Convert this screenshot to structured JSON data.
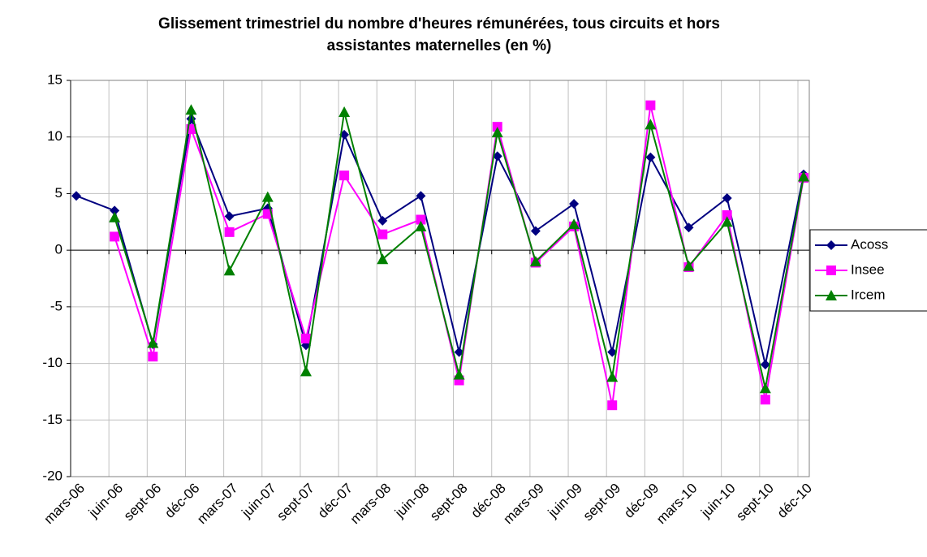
{
  "chart_data": {
    "type": "line",
    "title": "Glissement trimestriel du nombre d'heures rémunérées, tous circuits et hors assistantes maternelles (en %)",
    "categories": [
      "mars-06",
      "juin-06",
      "sept-06",
      "déc-06",
      "mars-07",
      "juin-07",
      "sept-07",
      "déc-07",
      "mars-08",
      "juin-08",
      "sept-08",
      "déc-08",
      "mars-09",
      "juin-09",
      "sept-09",
      "déc-09",
      "mars-10",
      "juin-10",
      "sept-10",
      "déc-10"
    ],
    "series": [
      {
        "name": "Acoss",
        "color": "#000080",
        "marker": "diamond",
        "values": [
          4.8,
          3.5,
          -8.3,
          11.6,
          3.0,
          3.7,
          -8.4,
          10.2,
          2.6,
          4.8,
          -9.0,
          8.3,
          1.7,
          4.1,
          -9.0,
          8.2,
          2.0,
          4.6,
          -10.1,
          6.7
        ]
      },
      {
        "name": "Insee",
        "color": "#ff00ff",
        "marker": "square",
        "values": [
          null,
          1.2,
          -9.4,
          10.7,
          1.6,
          3.2,
          -7.8,
          6.6,
          1.4,
          2.7,
          -11.5,
          10.9,
          -1.1,
          2.1,
          -13.7,
          12.8,
          -1.5,
          3.1,
          -13.2,
          6.4
        ]
      },
      {
        "name": "Ircem",
        "color": "#008000",
        "marker": "triangle",
        "values": [
          null,
          2.9,
          -8.2,
          12.4,
          -1.8,
          4.7,
          -10.7,
          12.2,
          -0.8,
          2.1,
          -11.0,
          10.4,
          -1.0,
          2.3,
          -11.2,
          11.1,
          -1.4,
          2.5,
          -12.2,
          6.5
        ]
      }
    ],
    "ylim": [
      -20,
      15
    ],
    "yticks": [
      -20,
      -15,
      -10,
      -5,
      0,
      5,
      10,
      15
    ],
    "grid": true,
    "legend": "right"
  }
}
